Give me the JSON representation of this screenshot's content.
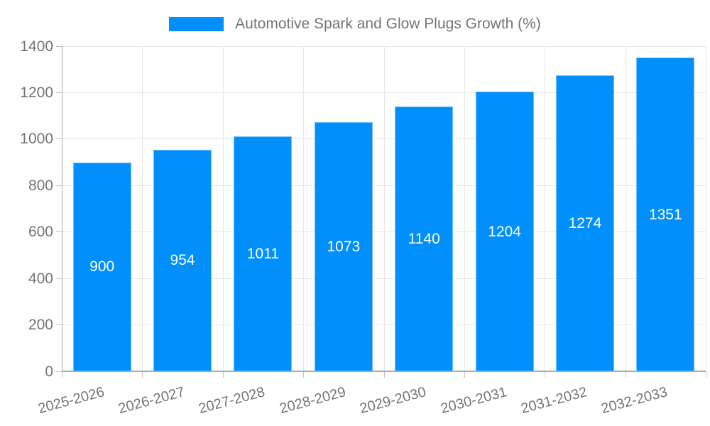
{
  "legend": {
    "label": "Automotive Spark and Glow Plugs Growth (%)"
  },
  "chart_data": {
    "type": "bar",
    "title": "",
    "legend_position": "top",
    "categories": [
      "2025-2026",
      "2026-2027",
      "2027-2028",
      "2028-2029",
      "2029-2030",
      "2030-2031",
      "2031-2032",
      "2032-2033"
    ],
    "series": [
      {
        "name": "Automotive Spark and Glow Plugs Growth (%)",
        "values": [
          900,
          954,
          1011,
          1073,
          1140,
          1204,
          1274,
          1351
        ]
      }
    ],
    "xlabel": "",
    "ylabel": "",
    "ylim": [
      0,
      1400
    ],
    "yticks": [
      0,
      200,
      400,
      600,
      800,
      1000,
      1200,
      1400
    ],
    "grid": true,
    "value_label_position": "inside-center",
    "colors": {
      "bar": "#008FFB",
      "bar_label": "#ffffff",
      "grid": "#e7e7e7",
      "axis": "#a8a8a8",
      "tick": "#c4c4c4",
      "text": "#757575"
    }
  }
}
